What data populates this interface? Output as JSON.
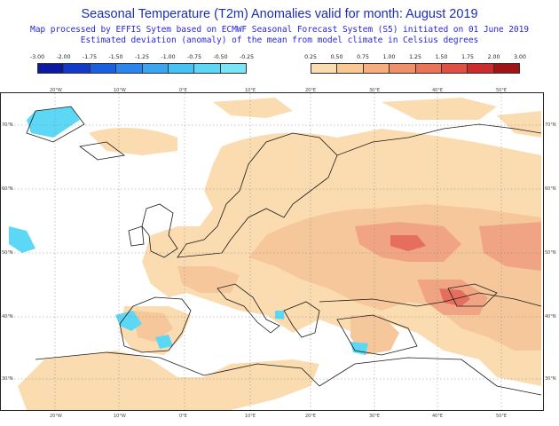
{
  "header": {
    "title": "Seasonal Temperature (T2m) Anomalies valid for month: August 2019",
    "subtitle_1": "Map processed by EFFIS Sytem based on ECMWF Seasonal Forecast System (S5) initiated on 01 June 2019",
    "subtitle_2": "Estimated deviation (anomaly) of the mean from model climate in Celsius degrees"
  },
  "legend_negative": {
    "labels": [
      "-3.00",
      "-2.00",
      "-1.75",
      "-1.50",
      "-1.25",
      "-1.00",
      "-0.75",
      "-0.50",
      "-0.25"
    ],
    "colors": [
      "#0a1aa0",
      "#1339c8",
      "#1a5ee2",
      "#2a86ee",
      "#3aa6f2",
      "#46c3f5",
      "#5cd8f6",
      "#78e6f6"
    ]
  },
  "legend_positive": {
    "labels": [
      "0.25",
      "0.50",
      "0.75",
      "1.00",
      "1.25",
      "1.50",
      "1.75",
      "2.00",
      "3.00"
    ],
    "colors": [
      "#fbdcb0",
      "#f9c893",
      "#f5ae7c",
      "#f09068",
      "#ea7358",
      "#e04f43",
      "#cc2c2c",
      "#a01414"
    ]
  },
  "map": {
    "lon_labels": [
      "20°W",
      "10°W",
      "0°E",
      "10°E",
      "20°E",
      "30°E",
      "40°E",
      "50°E"
    ],
    "lat_labels": [
      "70°N",
      "60°N",
      "50°N",
      "40°N",
      "30°N"
    ],
    "colors": {
      "land_outline": "#1a1a1a",
      "anomaly_light": "#fbdcb0",
      "anomaly_mid": "#f6c79a",
      "anomaly_strong": "#f0a484",
      "anomaly_hot": "#e66e5e",
      "anomaly_cold": "#5cd8f6"
    }
  }
}
